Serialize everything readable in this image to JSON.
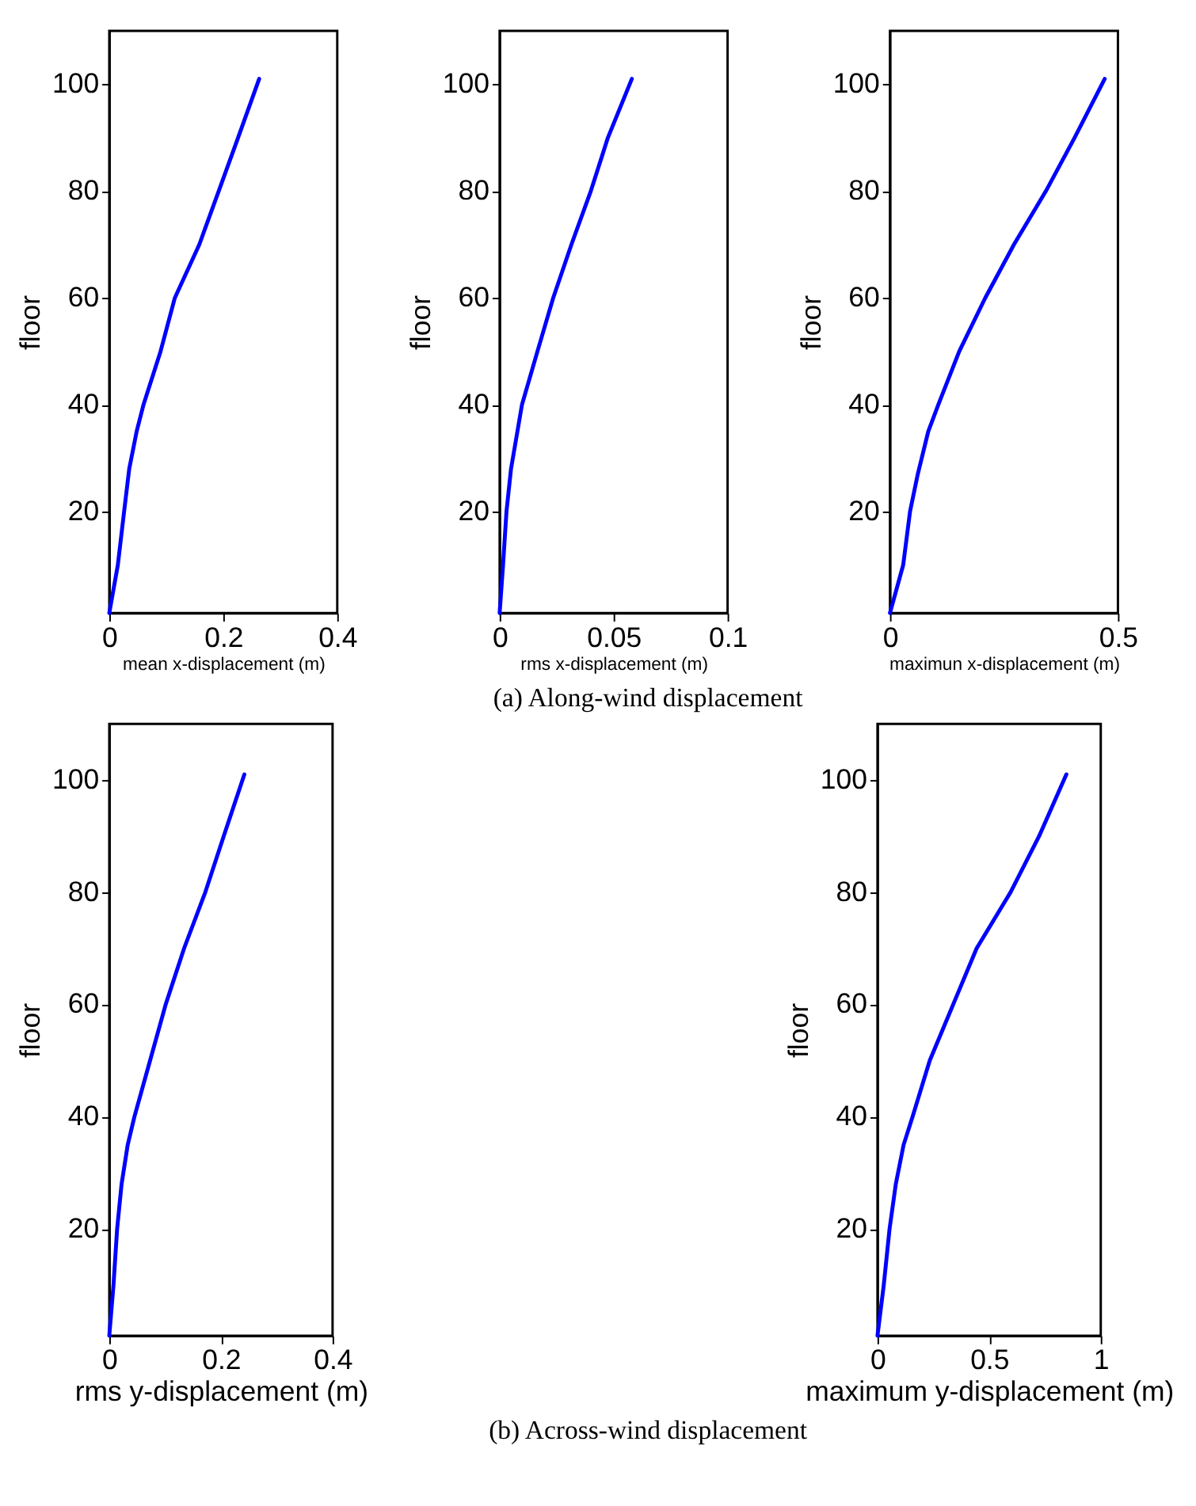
{
  "chart_data": [
    {
      "type": "line",
      "xlabel": "mean x-displacement (m)",
      "ylabel": "floor",
      "xlim": [
        0,
        0.4
      ],
      "xticks": [
        0,
        0.2,
        0.4
      ],
      "ylim": [
        1,
        110
      ],
      "yticks": [
        20,
        40,
        60,
        80,
        100
      ],
      "grid": false,
      "series": [
        {
          "color": "#0000ff",
          "x": [
            0,
            0.015,
            0.026,
            0.035,
            0.048,
            0.06,
            0.09,
            0.115,
            0.158,
            0.192,
            0.226,
            0.263
          ],
          "values": [
            1,
            10,
            20,
            28,
            35,
            40,
            50,
            60,
            70,
            80,
            90,
            101
          ]
        }
      ]
    },
    {
      "type": "line",
      "xlabel": "rms x-displacement (m)",
      "ylabel": "floor",
      "xlim": [
        0,
        0.1
      ],
      "xticks": [
        0,
        0.05,
        0.1
      ],
      "ylim": [
        1,
        110
      ],
      "yticks": [
        20,
        40,
        60,
        80,
        100
      ],
      "grid": false,
      "annotations": [
        "(a) Along-wind displacement"
      ],
      "series": [
        {
          "color": "#0000ff",
          "x": [
            0,
            0.0015,
            0.003,
            0.005,
            0.0098,
            0.0166,
            0.0235,
            0.0315,
            0.04,
            0.0475,
            0.058
          ],
          "values": [
            1,
            10,
            20,
            28,
            40,
            50,
            60,
            70,
            80,
            90,
            101
          ]
        }
      ]
    },
    {
      "type": "line",
      "xlabel": "maximun x-displacement (m)",
      "ylabel": "floor",
      "xlim": [
        0,
        0.5
      ],
      "xticks": [
        0,
        0.5
      ],
      "ylim": [
        1,
        110
      ],
      "yticks": [
        20,
        40,
        60,
        80,
        100
      ],
      "grid": false,
      "series": [
        {
          "color": "#0000ff",
          "x": [
            0,
            0.029,
            0.044,
            0.061,
            0.084,
            0.106,
            0.152,
            0.209,
            0.272,
            0.342,
            0.405,
            0.471
          ],
          "values": [
            1,
            10,
            20,
            27,
            35,
            40,
            50,
            60,
            70,
            80,
            90,
            101
          ]
        }
      ]
    },
    {
      "type": "line",
      "xlabel": "rms y-displacement (m)",
      "ylabel": "floor",
      "xlim": [
        0,
        0.4
      ],
      "xticks": [
        0,
        0.2,
        0.4
      ],
      "ylim": [
        1,
        110
      ],
      "yticks": [
        20,
        40,
        60,
        80,
        100
      ],
      "grid": false,
      "annotations": [
        "(b) Across-wind displacement"
      ],
      "series": [
        {
          "color": "#0000ff",
          "x": [
            0,
            0.0075,
            0.014,
            0.022,
            0.033,
            0.045,
            0.073,
            0.101,
            0.134,
            0.172,
            0.205,
            0.242
          ],
          "values": [
            1,
            10,
            20,
            28,
            35,
            40,
            50,
            60,
            70,
            80,
            90,
            101
          ]
        }
      ]
    },
    {
      "type": "line",
      "xlabel": "maximum y-displacement (m)",
      "ylabel": "floor",
      "xlim": [
        0,
        1
      ],
      "xticks": [
        0,
        0.5,
        1
      ],
      "ylim": [
        1,
        110
      ],
      "yticks": [
        20,
        40,
        60,
        80,
        100
      ],
      "grid": false,
      "series": [
        {
          "color": "#0000ff",
          "x": [
            0,
            0.028,
            0.054,
            0.082,
            0.117,
            0.157,
            0.234,
            0.339,
            0.444,
            0.596,
            0.724,
            0.846
          ],
          "values": [
            1,
            10,
            20,
            28,
            35,
            40,
            50,
            60,
            70,
            80,
            90,
            101
          ]
        }
      ]
    }
  ]
}
